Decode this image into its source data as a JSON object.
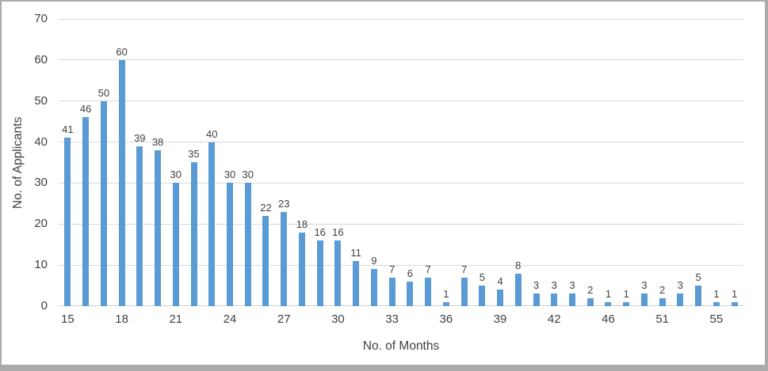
{
  "chart_data": {
    "type": "bar",
    "title": "",
    "xlabel": "No. of Months",
    "ylabel": "No. of Applicants",
    "ylim": [
      0,
      70
    ],
    "y_ticks": [
      0,
      10,
      20,
      30,
      40,
      50,
      60,
      70
    ],
    "values": [
      41,
      46,
      50,
      60,
      39,
      38,
      30,
      35,
      40,
      30,
      30,
      22,
      23,
      18,
      16,
      16,
      11,
      9,
      7,
      6,
      7,
      1,
      7,
      5,
      4,
      8,
      3,
      3,
      3,
      2,
      1,
      1,
      3,
      2,
      3,
      5,
      1,
      1
    ],
    "data_labels": [
      "41",
      "46",
      "50",
      "60",
      "39",
      "38",
      "30",
      "35",
      "40",
      "30",
      "30",
      "22",
      "23",
      "18",
      "16",
      "16",
      "11",
      "9",
      "7",
      "6",
      "7",
      "1",
      "7",
      "5",
      "4",
      "8",
      "3",
      "3",
      "3",
      "2",
      "1",
      "1",
      "3",
      "2",
      "3",
      "5",
      "1",
      "1"
    ],
    "x_tick_labels": [
      {
        "slot": 0,
        "label": "15"
      },
      {
        "slot": 3,
        "label": "18"
      },
      {
        "slot": 6,
        "label": "21"
      },
      {
        "slot": 9,
        "label": "24"
      },
      {
        "slot": 12,
        "label": "27"
      },
      {
        "slot": 15,
        "label": "30"
      },
      {
        "slot": 18,
        "label": "33"
      },
      {
        "slot": 21,
        "label": "36"
      },
      {
        "slot": 24,
        "label": "39"
      },
      {
        "slot": 27,
        "label": "42"
      },
      {
        "slot": 30,
        "label": "46"
      },
      {
        "slot": 33,
        "label": "51"
      },
      {
        "slot": 36,
        "label": "55"
      }
    ],
    "num_slots": 38,
    "grid": true,
    "legend_position": "none",
    "bar_color": "#5b9bd5",
    "gridline_color": "#d9d9d9",
    "axis_line_color": "#d0d0d0",
    "text_color": "#404040",
    "frame_color": "#ababab"
  }
}
